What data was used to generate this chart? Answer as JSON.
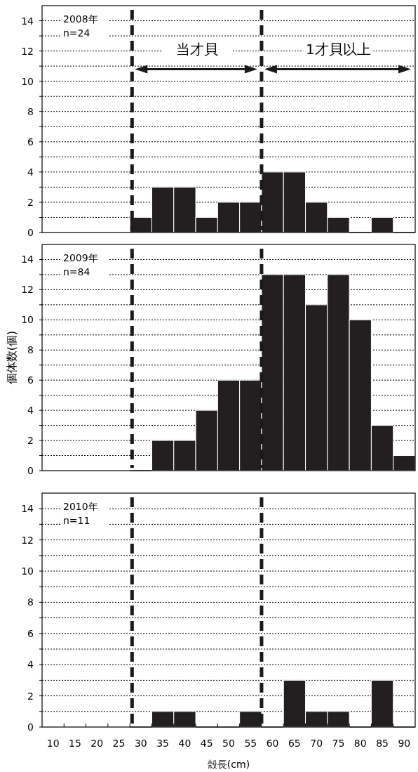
{
  "chart_data": [
    {
      "type": "histogram",
      "bins": [
        27.5,
        32.5,
        37.5,
        42.5,
        47.5,
        52.5,
        57.5,
        62.5,
        67.5,
        72.5,
        77.5,
        82.5,
        87.5,
        92.5
      ],
      "values": [
        1,
        3,
        3,
        1,
        2,
        2,
        4,
        4,
        2,
        1,
        0,
        1,
        0
      ],
      "color": "#231f20",
      "xlim": [
        7.5,
        92.5
      ],
      "ylim": [
        0,
        15
      ],
      "yticks": [
        0,
        {
          "value": 1,
          "label": null
        },
        2,
        {
          "value": 3,
          "label": null
        },
        4,
        {
          "value": 5,
          "label": null
        },
        6,
        {
          "value": 7,
          "label": null
        },
        8,
        {
          "value": 9,
          "label": null
        },
        10,
        {
          "value": 11,
          "label": null
        },
        12,
        {
          "value": 13,
          "label": null
        },
        14
      ],
      "grid": "y",
      "tick_labels": "y",
      "ref_lines": [
        {
          "axis": "x",
          "value": 28,
          "line_style": "dashed"
        },
        {
          "axis": "x",
          "value": 57.5,
          "line_style": "dashed"
        }
      ],
      "annotations": [
        "2008年",
        "n=24",
        "当才貝",
        "1才貝以上"
      ]
    },
    {
      "type": "histogram",
      "bins": [
        27.5,
        32.5,
        37.5,
        42.5,
        47.5,
        52.5,
        57.5,
        62.5,
        67.5,
        72.5,
        77.5,
        82.5,
        87.5,
        92.5
      ],
      "values": [
        0,
        2,
        2,
        4,
        6,
        6,
        13,
        13,
        11,
        13,
        10,
        3,
        1
      ],
      "color": "#231f20",
      "xlim": [
        7.5,
        92.5
      ],
      "ylim": [
        0,
        15
      ],
      "yticks": [
        0,
        {
          "value": 1,
          "label": null
        },
        2,
        {
          "value": 3,
          "label": null
        },
        4,
        {
          "value": 5,
          "label": null
        },
        6,
        {
          "value": 7,
          "label": null
        },
        8,
        {
          "value": 9,
          "label": null
        },
        10,
        {
          "value": 11,
          "label": null
        },
        12,
        {
          "value": 13,
          "label": null
        },
        14
      ],
      "grid": "y",
      "tick_labels": "y",
      "ylabel": "個体数(個)",
      "ref_lines": [
        {
          "axis": "x",
          "value": 28,
          "line_style": "dashed"
        },
        {
          "axis": "x",
          "value": 57.5,
          "line_style": "dashed"
        }
      ],
      "annotations": [
        "2009年",
        "n=84"
      ]
    },
    {
      "type": "histogram",
      "bins": [
        27.5,
        32.5,
        37.5,
        42.5,
        47.5,
        52.5,
        57.5,
        62.5,
        67.5,
        72.5,
        77.5,
        82.5,
        87.5,
        92.5
      ],
      "values": [
        0,
        1,
        1,
        0,
        0,
        1,
        0,
        3,
        1,
        1,
        0,
        3,
        0
      ],
      "color": "#231f20",
      "xlim": [
        7.5,
        92.5
      ],
      "ylim": [
        0,
        15
      ],
      "xticks": [
        10,
        {
          "value": 12.5,
          "label": null
        },
        15,
        {
          "value": 17.5,
          "label": null
        },
        20,
        {
          "value": 22.5,
          "label": null
        },
        25,
        {
          "value": 27.5,
          "label": null
        },
        30,
        {
          "value": 32.5,
          "label": null
        },
        35,
        {
          "value": 37.5,
          "label": null
        },
        40,
        {
          "value": 42.5,
          "label": null
        },
        45,
        {
          "value": 47.5,
          "label": null
        },
        50,
        {
          "value": 52.5,
          "label": null
        },
        55,
        {
          "value": 57.5,
          "label": null
        },
        60,
        {
          "value": 62.5,
          "label": null
        },
        65,
        {
          "value": 67.5,
          "label": null
        },
        70,
        {
          "value": 72.5,
          "label": null
        },
        75,
        {
          "value": 77.5,
          "label": null
        },
        80,
        {
          "value": 82.5,
          "label": null
        },
        85,
        {
          "value": 87.5,
          "label": null
        },
        90
      ],
      "yticks": [
        0,
        {
          "value": 1,
          "label": null
        },
        2,
        {
          "value": 3,
          "label": null
        },
        4,
        {
          "value": 5,
          "label": null
        },
        6,
        {
          "value": 7,
          "label": null
        },
        8,
        {
          "value": 9,
          "label": null
        },
        10,
        {
          "value": 11,
          "label": null
        },
        12,
        {
          "value": 13,
          "label": null
        },
        14
      ],
      "grid": "y",
      "xlabel": "殻長(cm)",
      "ref_lines": [
        {
          "axis": "x",
          "value": 28,
          "line_style": "dashed"
        },
        {
          "axis": "x",
          "value": 57.5,
          "line_style": "dashed"
        }
      ],
      "annotations": [
        "2010年",
        "n=11"
      ]
    }
  ]
}
